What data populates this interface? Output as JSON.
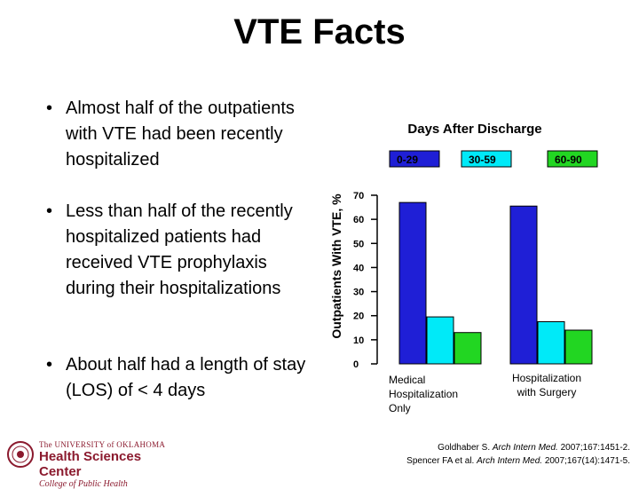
{
  "title": "VTE Facts",
  "bullets": [
    "Almost half of the outpatients with VTE had been recently hospitalized",
    "Less than half of the recently hospitalized patients had received VTE prophylaxis during their hospitalizations",
    "About half had a length of stay (LOS) of < 4 days"
  ],
  "chart_data": {
    "type": "bar",
    "title": "Days After Discharge",
    "ylabel": "Outpatients With VTE, %",
    "xlabel": "",
    "ylim": [
      0,
      70
    ],
    "yticks": [
      0,
      10,
      20,
      30,
      40,
      50,
      60,
      70
    ],
    "categories": [
      "Medical Hospitalization Only",
      "Hospitalization with Surgery"
    ],
    "series": [
      {
        "name": "0-29",
        "color": "#1f1fd6",
        "values": [
          67,
          65.5
        ]
      },
      {
        "name": "30-59",
        "color": "#00eaf8",
        "values": [
          19.5,
          17.5
        ]
      },
      {
        "name": "60-90",
        "color": "#22d622",
        "values": [
          13,
          14
        ]
      }
    ],
    "legend": "top"
  },
  "logo": {
    "line1": "The UNIVERSITY of OKLAHOMA",
    "line2": "Health Sciences Center",
    "line3": "College of Public Health"
  },
  "citations": {
    "c1_author": "Goldhaber S.",
    "c1_journal": "Arch Intern Med.",
    "c1_ref": "2007;167:1451-2.",
    "c2_author": "Spencer FA et al.",
    "c2_journal": "Arch Intern Med.",
    "c2_ref": "2007;167(14):1471-5."
  }
}
